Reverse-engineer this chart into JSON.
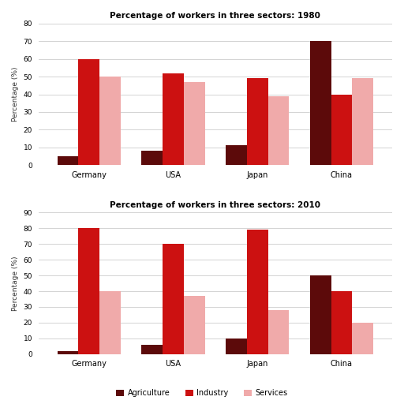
{
  "title_1980": "Percentage of workers in three sectors: 1980",
  "title_2010": "Percentage of workers in three sectors: 2010",
  "countries": [
    "Germany",
    "USA",
    "Japan",
    "China"
  ],
  "sectors": [
    "Agriculture",
    "Industry",
    "Services"
  ],
  "sector_colors": [
    "#5c0a0a",
    "#cc1111",
    "#f0aaaa"
  ],
  "data_1980": {
    "Agriculture": [
      5,
      8,
      11,
      70
    ],
    "Industry": [
      60,
      52,
      49,
      40
    ],
    "Services": [
      50,
      47,
      39,
      49
    ]
  },
  "data_2010": {
    "Agriculture": [
      2,
      6,
      10,
      50
    ],
    "Industry": [
      80,
      70,
      79,
      40
    ],
    "Services": [
      40,
      37,
      28,
      20
    ]
  },
  "ylim_1980": [
    0,
    80
  ],
  "ylim_2010": [
    0,
    90
  ],
  "yticks_1980": [
    0,
    10,
    20,
    30,
    40,
    50,
    60,
    70,
    80
  ],
  "yticks_2010": [
    0,
    10,
    20,
    30,
    40,
    50,
    60,
    70,
    80,
    90
  ],
  "ylabel": "Percentage (%)",
  "background_color": "#ffffff",
  "grid_color": "#cccccc",
  "bar_width": 0.25,
  "figsize": [
    5.12,
    5.12
  ],
  "dpi": 100
}
